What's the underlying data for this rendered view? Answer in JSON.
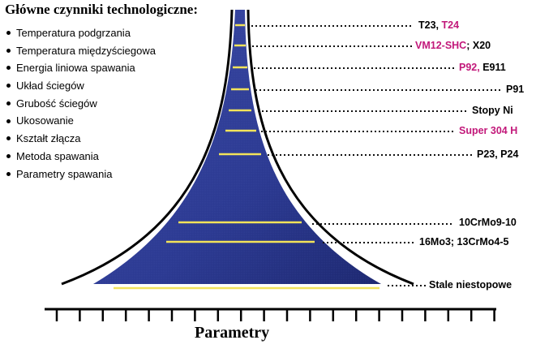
{
  "title": "Główne czynniki technologiczne:",
  "factors": [
    "Temperatura podgrzania",
    "Temperatura międzyściegowa",
    "Energia liniowa spawania",
    "Układ ściegów",
    "Grubość ściegów",
    "Ukosowanie",
    "Kształt złącza",
    "Metoda spawania",
    "Parametry spawania"
  ],
  "materials": {
    "m1a": "T23, ",
    "m1b": "T24",
    "m2a": "VM12-SHC",
    "m2b": "; X20",
    "m3a": "P92, ",
    "m3b": "E911",
    "m4": "P91",
    "m5": "Stopy Ni",
    "m6": "Super 304 H",
    "m7": "P23, P24",
    "m8": "10CrMo9-10",
    "m9": "16Mo3; 13CrMo4-5",
    "m10": "Stale niestopowe"
  },
  "axis_title": "Parametry",
  "colors": {
    "funnel_fill": "#2a3990",
    "band_line": "#f2e35a",
    "pink_label": "#c2187a"
  }
}
